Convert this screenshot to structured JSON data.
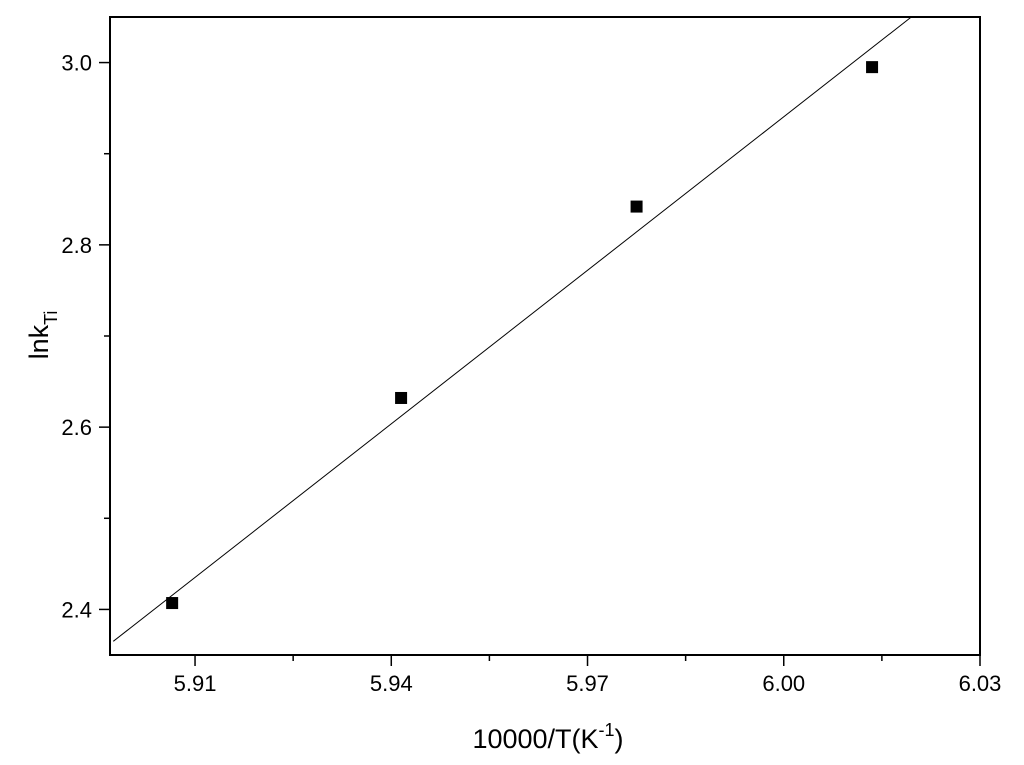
{
  "chart_data": {
    "type": "scatter",
    "title": "",
    "xlabel": {
      "main": "10000/T(K",
      "sup": "-1",
      "end": ")"
    },
    "ylabel": {
      "main": "lnk",
      "sub": "Ti"
    },
    "xlim": [
      5.897,
      6.03
    ],
    "ylim": [
      2.35,
      3.05
    ],
    "x_ticks": [
      5.91,
      5.94,
      5.97,
      6.0,
      6.03
    ],
    "x_tick_labels": [
      "5.91",
      "5.94",
      "5.97",
      "6.00",
      "6.03"
    ],
    "y_ticks": [
      2.4,
      2.6,
      2.8,
      3.0
    ],
    "y_tick_labels": [
      "2.4",
      "2.6",
      "2.8",
      "3.0"
    ],
    "series": [
      {
        "marker": "square",
        "color": "#000000",
        "points": [
          {
            "x": 5.9065,
            "y": 2.407
          },
          {
            "x": 5.9415,
            "y": 2.632
          },
          {
            "x": 5.9775,
            "y": 2.842
          },
          {
            "x": 6.0135,
            "y": 2.995
          }
        ]
      }
    ],
    "fit_line": {
      "color": "#000000",
      "points": [
        {
          "x": 5.8975,
          "y": 2.365
        },
        {
          "x": 6.0195,
          "y": 3.05
        }
      ]
    },
    "grid": false,
    "legend": "none"
  }
}
